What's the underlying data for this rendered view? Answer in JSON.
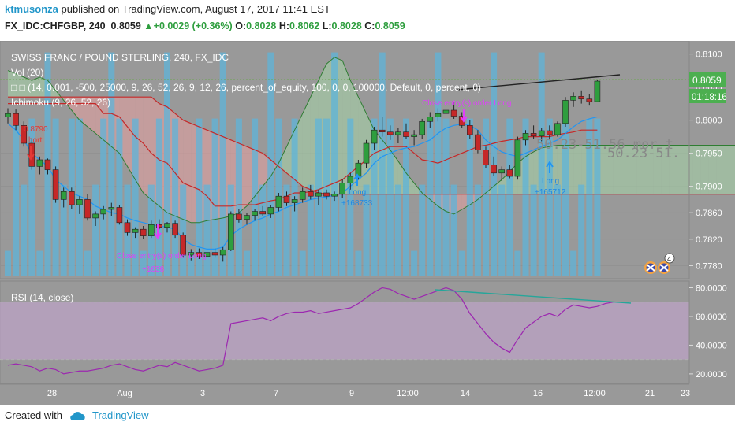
{
  "header": {
    "author": "ktmusonza",
    "published": "published on TradingView.com, August 17, 2017 11:41 EST",
    "symbol": "FX_IDC:CHFGBP, 240",
    "last": "0.8059",
    "change": "+0.0029 (+0.36%)",
    "o_label": "O:",
    "o": "0.8028",
    "h_label": "H:",
    "h": "0.8062",
    "l_label": "L:",
    "l": "0.8028",
    "c_label": "C:",
    "c": "0.8059"
  },
  "labels": {
    "title": "SWISS FRANC / POUND STERLING, 240, FX_IDC",
    "vol": "Vol (20)",
    "strategy": "□ □ (14, 0.001, -500, 25000, 9, 26, 52, 26, 9, 12, 26, percent_of_equity, 100, 0, 0, 100000, Default, 0, percent, 0)",
    "ichimoku": "Ichimoku (9, 26, 52, 26)",
    "rsi": "RSI (14, close)",
    "price_badge": "0.8059",
    "time_badge": "01:18:16",
    "event_count": "4",
    "annot_short_price": "0.8790",
    "annot_short": "hort",
    "annot_long1": "Long",
    "annot_long1_val": "+168733",
    "annot_long2": "Long",
    "annot_long2_val": "+165712",
    "annot_close_top": "Close entry(s) order Long",
    "annot_close_bottom": "Close entry(s) order Long",
    "annot_close_bottom_val": "+1636",
    "watermark1": "50.23-51.56 mor t",
    "watermark2": "50.23-51."
  },
  "footer": {
    "created": "Created with",
    "brand": "TradingView"
  },
  "colors": {
    "pane_bg": "#999999",
    "up": "#2e9e3e",
    "down": "#c62828",
    "kijun": "#c62828",
    "tenkan": "#2196f3",
    "span_b": "#c62828",
    "span_a": "#2e7d32",
    "cloud_red": "#e8a0a0",
    "cloud_green": "#a5d6a7",
    "vol": "#5fb4d9",
    "rsi": "#9c27b0",
    "rsi_band": "#c9a6d6"
  },
  "chart_data": [
    {
      "type": "candlestick",
      "title": "SWISS FRANC / POUND STERLING, 240, FX_IDC",
      "x_ticks": [
        "28",
        "Aug",
        "3",
        "7",
        "9",
        "12:00",
        "14",
        "16",
        "12:00",
        "21",
        "23"
      ],
      "y_ticks": [
        0.81,
        0.805,
        0.8,
        0.795,
        0.79,
        0.786,
        0.782,
        0.778
      ],
      "ylim": [
        0.7765,
        0.8115
      ],
      "candles": [
        [
          0.8005,
          0.8018,
          0.7995,
          0.801
        ],
        [
          0.801,
          0.8016,
          0.7985,
          0.7992
        ],
        [
          0.7992,
          0.7998,
          0.796,
          0.7965
        ],
        [
          0.7965,
          0.7972,
          0.7925,
          0.793
        ],
        [
          0.793,
          0.7945,
          0.7918,
          0.794
        ],
        [
          0.794,
          0.7942,
          0.7918,
          0.7925
        ],
        [
          0.7925,
          0.793,
          0.7875,
          0.788
        ],
        [
          0.788,
          0.7898,
          0.7868,
          0.7892
        ],
        [
          0.7892,
          0.7898,
          0.7865,
          0.7872
        ],
        [
          0.7872,
          0.7885,
          0.7858,
          0.788
        ],
        [
          0.788,
          0.7888,
          0.7848,
          0.7852
        ],
        [
          0.7852,
          0.7862,
          0.784,
          0.7858
        ],
        [
          0.7858,
          0.787,
          0.785,
          0.7865
        ],
        [
          0.7865,
          0.7875,
          0.7855,
          0.7868
        ],
        [
          0.7868,
          0.7872,
          0.7842,
          0.7845
        ],
        [
          0.7845,
          0.785,
          0.7825,
          0.783
        ],
        [
          0.783,
          0.7838,
          0.7822,
          0.7835
        ],
        [
          0.7835,
          0.784,
          0.782,
          0.7825
        ],
        [
          0.7825,
          0.7848,
          0.7822,
          0.7842
        ],
        [
          0.7842,
          0.785,
          0.7835,
          0.7838
        ],
        [
          0.7838,
          0.7846,
          0.783,
          0.7844
        ],
        [
          0.7844,
          0.7848,
          0.7822,
          0.7826
        ],
        [
          0.7826,
          0.783,
          0.7792,
          0.7796
        ],
        [
          0.7796,
          0.7805,
          0.7788,
          0.78
        ],
        [
          0.78,
          0.7806,
          0.779,
          0.7794
        ],
        [
          0.7794,
          0.7804,
          0.7789,
          0.78
        ],
        [
          0.78,
          0.7806,
          0.7792,
          0.7796
        ],
        [
          0.7796,
          0.7808,
          0.7786,
          0.7804
        ],
        [
          0.7804,
          0.7862,
          0.7802,
          0.7858
        ],
        [
          0.7858,
          0.7866,
          0.7845,
          0.785
        ],
        [
          0.785,
          0.786,
          0.7842,
          0.7856
        ],
        [
          0.7856,
          0.7866,
          0.7848,
          0.7862
        ],
        [
          0.7862,
          0.787,
          0.7855,
          0.7858
        ],
        [
          0.7858,
          0.7872,
          0.7852,
          0.7868
        ],
        [
          0.7868,
          0.789,
          0.7862,
          0.7885
        ],
        [
          0.7885,
          0.7892,
          0.787,
          0.7875
        ],
        [
          0.7875,
          0.7885,
          0.7862,
          0.788
        ],
        [
          0.788,
          0.7898,
          0.7875,
          0.7892
        ],
        [
          0.7892,
          0.7902,
          0.788,
          0.7885
        ],
        [
          0.7885,
          0.7895,
          0.7872,
          0.789
        ],
        [
          0.789,
          0.7895,
          0.788,
          0.7885
        ],
        [
          0.7885,
          0.7892,
          0.7878,
          0.7888
        ],
        [
          0.7888,
          0.791,
          0.7882,
          0.7905
        ],
        [
          0.7905,
          0.792,
          0.7895,
          0.7915
        ],
        [
          0.7915,
          0.794,
          0.791,
          0.7935
        ],
        [
          0.7935,
          0.797,
          0.7928,
          0.7965
        ],
        [
          0.7965,
          0.799,
          0.7955,
          0.7985
        ],
        [
          0.7985,
          0.8005,
          0.7975,
          0.7982
        ],
        [
          0.7982,
          0.7992,
          0.797,
          0.7978
        ],
        [
          0.7978,
          0.7988,
          0.7965,
          0.7982
        ],
        [
          0.7982,
          0.7995,
          0.7972,
          0.7975
        ],
        [
          0.7975,
          0.7985,
          0.7962,
          0.7978
        ],
        [
          0.7978,
          0.8002,
          0.7972,
          0.7998
        ],
        [
          0.7998,
          0.8012,
          0.7988,
          0.8005
        ],
        [
          0.8005,
          0.8018,
          0.7998,
          0.801
        ],
        [
          0.801,
          0.8022,
          0.8,
          0.8015
        ],
        [
          0.8015,
          0.8028,
          0.8002,
          0.8006
        ],
        [
          0.8006,
          0.8012,
          0.7988,
          0.7992
        ],
        [
          0.7992,
          0.8,
          0.7972,
          0.7978
        ],
        [
          0.7978,
          0.7985,
          0.795,
          0.7955
        ],
        [
          0.7955,
          0.796,
          0.7928,
          0.7932
        ],
        [
          0.7932,
          0.7945,
          0.7915,
          0.792
        ],
        [
          0.792,
          0.793,
          0.7908,
          0.7925
        ],
        [
          0.7925,
          0.7932,
          0.7912,
          0.7915
        ],
        [
          0.7915,
          0.7975,
          0.791,
          0.797
        ],
        [
          0.797,
          0.7985,
          0.7962,
          0.798
        ],
        [
          0.798,
          0.7992,
          0.7972,
          0.7976
        ],
        [
          0.7976,
          0.7988,
          0.7968,
          0.7984
        ],
        [
          0.7984,
          0.7992,
          0.7972,
          0.7978
        ],
        [
          0.7978,
          0.7998,
          0.7975,
          0.7995
        ],
        [
          0.7995,
          0.8035,
          0.799,
          0.803
        ],
        [
          0.803,
          0.8042,
          0.802,
          0.8036
        ],
        [
          0.8036,
          0.8045,
          0.8025,
          0.8032
        ],
        [
          0.8032,
          0.804,
          0.8022,
          0.8028
        ],
        [
          0.8028,
          0.8062,
          0.8028,
          0.8059
        ]
      ],
      "volume": [
        0.78,
        0.8,
        0.79,
        0.8,
        0.78,
        0.81,
        0.8,
        0.79,
        0.8,
        0.8,
        0.78,
        0.79,
        0.8,
        0.81,
        0.8,
        0.79,
        0.8,
        0.78,
        0.79,
        0.8,
        0.81,
        0.8,
        0.79,
        0.78,
        0.8,
        0.79,
        0.8,
        0.81,
        0.79,
        0.8,
        0.78,
        0.8,
        0.79,
        0.81,
        0.8,
        0.79,
        0.8,
        0.78,
        0.79,
        0.8,
        0.8,
        0.81,
        0.79,
        0.8,
        0.78,
        0.79,
        0.8,
        0.81,
        0.8,
        0.79,
        0.8,
        0.78,
        0.79,
        0.8,
        0.81,
        0.8,
        0.79,
        0.78,
        0.8,
        0.79,
        0.8,
        0.81,
        0.79,
        0.8,
        0.78,
        0.8,
        0.79,
        0.81,
        0.8,
        0.79,
        0.8,
        0.78,
        0.79,
        0.8,
        0.8
      ],
      "tenkan": [
        0.7995,
        0.7985,
        0.797,
        0.795,
        0.794,
        0.793,
        0.791,
        0.79,
        0.789,
        0.7885,
        0.788,
        0.787,
        0.7865,
        0.786,
        0.7858,
        0.7852,
        0.7848,
        0.7845,
        0.7842,
        0.784,
        0.7838,
        0.7835,
        0.782,
        0.7812,
        0.7808,
        0.7805,
        0.7805,
        0.7808,
        0.7825,
        0.7835,
        0.7842,
        0.7848,
        0.7852,
        0.7858,
        0.7862,
        0.7868,
        0.7872,
        0.7876,
        0.788,
        0.7882,
        0.7884,
        0.7886,
        0.789,
        0.79,
        0.791,
        0.792,
        0.7935,
        0.7945,
        0.795,
        0.7955,
        0.7958,
        0.796,
        0.7965,
        0.797,
        0.798,
        0.7988,
        0.7992,
        0.7994,
        0.7992,
        0.7985,
        0.797,
        0.796,
        0.7952,
        0.7948,
        0.7945,
        0.795,
        0.7955,
        0.796,
        0.7965,
        0.797,
        0.798,
        0.799,
        0.7998,
        0.8002,
        0.8005
      ],
      "kijun": [
        0.8025,
        0.8025,
        0.8025,
        0.8025,
        0.8025,
        0.8025,
        0.8025,
        0.8025,
        0.8025,
        0.8025,
        0.8025,
        0.8025,
        0.801,
        0.801,
        0.8005,
        0.799,
        0.7975,
        0.7965,
        0.795,
        0.794,
        0.7935,
        0.792,
        0.7905,
        0.79,
        0.7895,
        0.7885,
        0.787,
        0.787,
        0.787,
        0.7872,
        0.7872,
        0.7872,
        0.7875,
        0.7878,
        0.788,
        0.7885,
        0.789,
        0.789,
        0.7892,
        0.7895,
        0.79,
        0.7905,
        0.791,
        0.792,
        0.793,
        0.794,
        0.795,
        0.7955,
        0.796,
        0.796,
        0.796,
        0.795,
        0.794,
        0.7938,
        0.7935,
        0.794,
        0.7945,
        0.795,
        0.7955,
        0.796,
        0.7962,
        0.7965,
        0.7968,
        0.797,
        0.7972,
        0.7975,
        0.7975,
        0.7975,
        0.7975,
        0.7978,
        0.798,
        0.7982,
        0.7985,
        0.7985,
        0.7985
      ],
      "span_a_future": [
        0.8075,
        0.807,
        0.8065,
        0.806,
        0.8065,
        0.806,
        0.8045,
        0.803,
        0.8015,
        0.8,
        0.799,
        0.798,
        0.797,
        0.796,
        0.795,
        0.793,
        0.791,
        0.789,
        0.788,
        0.787,
        0.786,
        0.7855,
        0.785,
        0.7845,
        0.7845,
        0.7848,
        0.785,
        0.7852,
        0.7855,
        0.786,
        0.787,
        0.7885,
        0.79,
        0.7915,
        0.7935,
        0.796,
        0.7985,
        0.801,
        0.8035,
        0.806,
        0.8085,
        0.8095,
        0.809,
        0.806,
        0.8035,
        0.801,
        0.7985,
        0.797,
        0.7955,
        0.7938,
        0.792,
        0.7905,
        0.789,
        0.788,
        0.787,
        0.7862,
        0.7858,
        0.7865,
        0.7872,
        0.788,
        0.789,
        0.79,
        0.791,
        0.7922,
        0.7935,
        0.7945,
        0.7952,
        0.7958,
        0.796,
        0.7962,
        0.7962,
        0.7962,
        0.7962,
        0.7962,
        0.7962,
        0.7962,
        0.7962,
        0.7962,
        0.7962,
        0.7962,
        0.7962,
        0.7962,
        0.7962,
        0.7962,
        0.7962,
        0.7962,
        0.7962,
        0.7962,
        0.7962,
        0.7962,
        0.7962,
        0.7962,
        0.7962,
        0.7962,
        0.7962,
        0.7962
      ],
      "span_b_future": [
        0.8035,
        0.8035,
        0.8035,
        0.8035,
        0.8035,
        0.8035,
        0.8035,
        0.8035,
        0.8035,
        0.8035,
        0.8035,
        0.8035,
        0.8035,
        0.8035,
        0.8035,
        0.8035,
        0.8035,
        0.8035,
        0.8035,
        0.8025,
        0.802,
        0.801,
        0.8,
        0.7995,
        0.799,
        0.7985,
        0.798,
        0.7975,
        0.797,
        0.7965,
        0.796,
        0.7955,
        0.795,
        0.794,
        0.793,
        0.792,
        0.791,
        0.79,
        0.7895,
        0.789,
        0.7888,
        0.7888,
        0.7888,
        0.7888,
        0.7888,
        0.7888,
        0.7888,
        0.7888,
        0.7888,
        0.7888,
        0.7888,
        0.7888,
        0.7888,
        0.7888,
        0.7888,
        0.7888,
        0.7888,
        0.7888,
        0.7888,
        0.7888,
        0.7888,
        0.7888,
        0.7888,
        0.7888,
        0.7888,
        0.7888,
        0.7888,
        0.7888,
        0.7888,
        0.7888,
        0.7888,
        0.7888,
        0.7888,
        0.7888,
        0.7888,
        0.7888,
        0.7888,
        0.7888,
        0.7888,
        0.7888,
        0.7888,
        0.7888,
        0.7888,
        0.7888,
        0.7888,
        0.7888,
        0.7888,
        0.7888,
        0.7888,
        0.7888,
        0.7888,
        0.7888,
        0.7888,
        0.7888,
        0.7888,
        0.7888
      ]
    },
    {
      "type": "line",
      "title": "RSI (14, close)",
      "y_ticks": [
        80,
        60,
        40,
        20
      ],
      "ylim": [
        15,
        83
      ],
      "band": [
        30,
        70
      ],
      "values": [
        26,
        27,
        26,
        25,
        22,
        24,
        23,
        20,
        21,
        22,
        22,
        23,
        24,
        26,
        27,
        25,
        23,
        22,
        24,
        26,
        25,
        28,
        26,
        24,
        22,
        23,
        24,
        26,
        55,
        56,
        57,
        58,
        59,
        57,
        60,
        62,
        63,
        63,
        64,
        62,
        63,
        64,
        65,
        66,
        69,
        73,
        77,
        80,
        79,
        76,
        74,
        72,
        74,
        76,
        78,
        80,
        78,
        72,
        62,
        55,
        48,
        42,
        38,
        35,
        44,
        52,
        56,
        60,
        62,
        60,
        65,
        68,
        67,
        66,
        67,
        69,
        70
      ]
    }
  ]
}
